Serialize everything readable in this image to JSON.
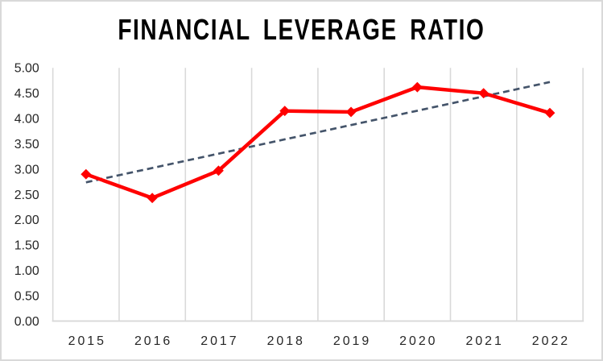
{
  "chart_data": {
    "type": "line",
    "title": "FINANCIAL LEVERAGE RATIO",
    "categories": [
      "2015",
      "2016",
      "2017",
      "2018",
      "2019",
      "2020",
      "2021",
      "2022"
    ],
    "series": [
      {
        "name": "Financial Leverage Ratio",
        "values": [
          2.9,
          2.43,
          2.97,
          4.15,
          4.13,
          4.62,
          4.5,
          4.11
        ],
        "color": "#FF0000",
        "marker": "diamond"
      }
    ],
    "trendline": {
      "kind": "linear",
      "start_value": 2.74,
      "end_value": 4.72,
      "style": "dashed",
      "color": "#44546A"
    },
    "xlabel": "",
    "ylabel": "",
    "ylim": [
      0,
      5
    ],
    "ytick_step": 0.5,
    "ytick_labels": [
      "0.00",
      "0.50",
      "1.00",
      "1.50",
      "2.00",
      "2.50",
      "3.00",
      "3.50",
      "4.00",
      "4.50",
      "5.00"
    ],
    "grid": "vertical",
    "legend": "none",
    "colors": {
      "gridline": "#D9D9D9",
      "axis_text": "#262626",
      "title_text": "#000000",
      "frame_border": "#D9D9D9",
      "background": "#FFFFFF"
    }
  }
}
